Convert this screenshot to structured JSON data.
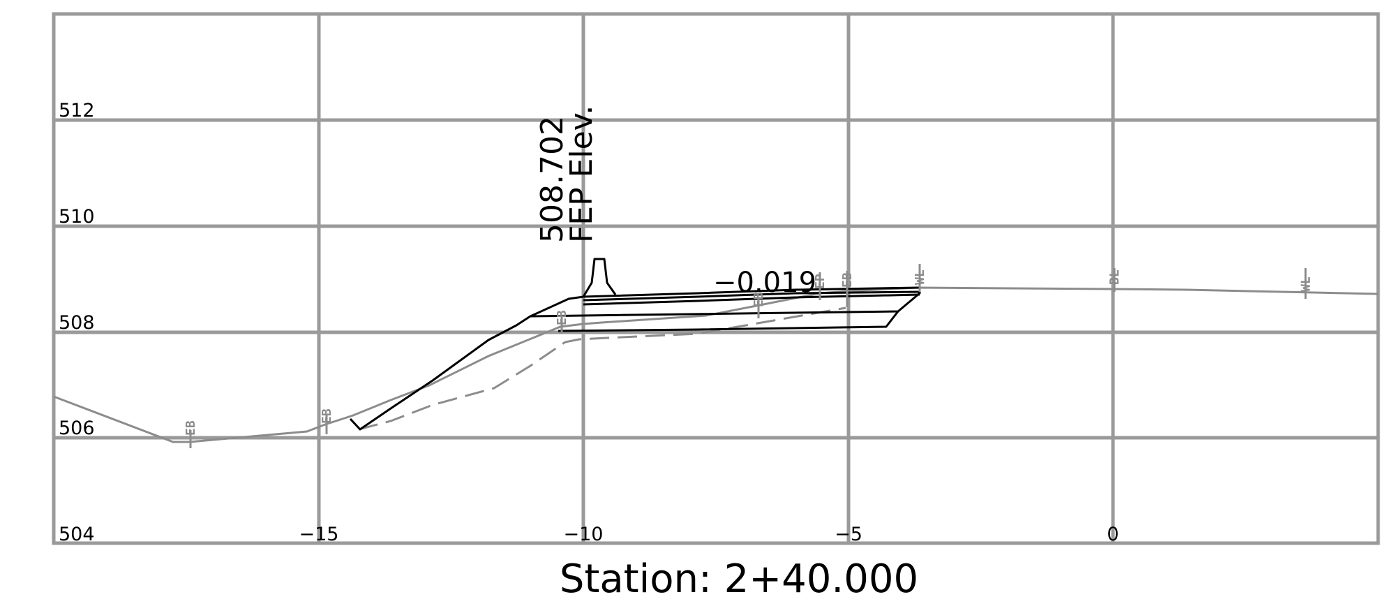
{
  "chart_data": {
    "type": "diagram",
    "title": "Station: 2+40.000",
    "x_ticks": [
      "−15",
      "−10",
      "−5",
      "0"
    ],
    "y_ticks": [
      "512",
      "510",
      "508",
      "506",
      "504"
    ],
    "annotation_elev": "508.702",
    "annotation_label": "FEP Elev.",
    "slope_label": "−0.019",
    "point_tags": [
      "EB",
      "EB",
      "EB",
      "EB",
      "EP",
      "EB",
      "WL",
      "BL",
      "WL"
    ]
  }
}
